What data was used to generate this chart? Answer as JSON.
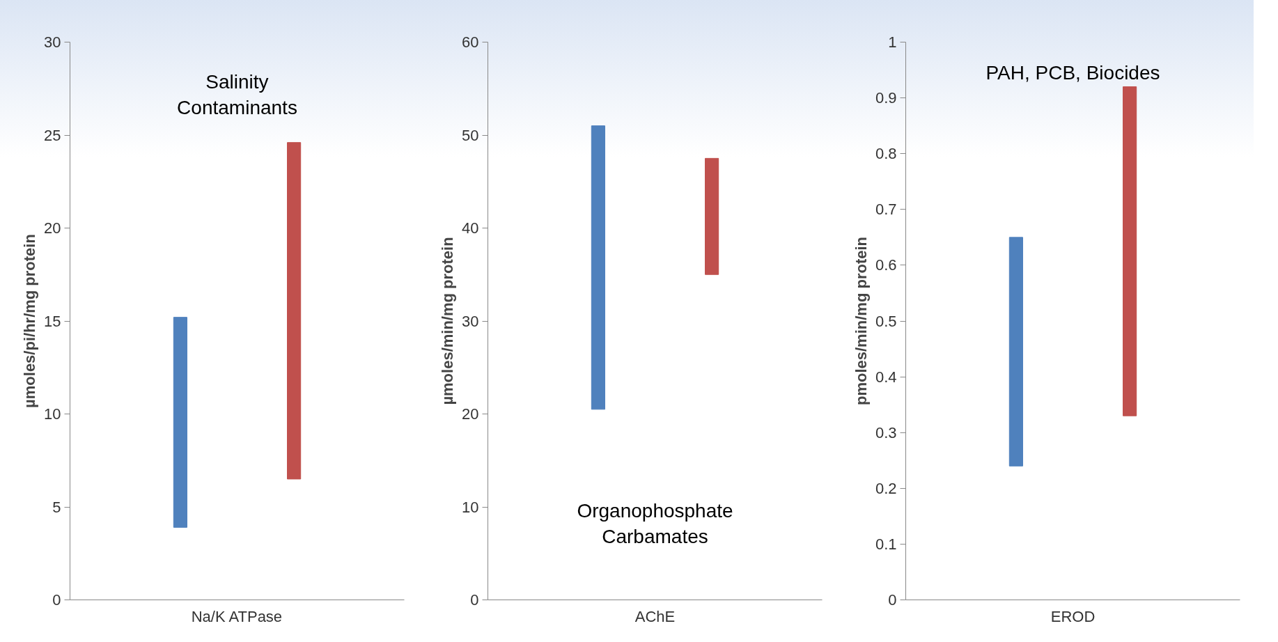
{
  "chart_data": [
    {
      "type": "bar",
      "categories": [
        "Na/K ATPase"
      ],
      "ylabel": "µmoles/pi/hr/mg protein",
      "ylim": [
        0,
        30
      ],
      "yticks": [
        0,
        5,
        10,
        15,
        20,
        25,
        30
      ],
      "annotations": [
        "Salinity\nContaminants"
      ],
      "series": [
        {
          "color": "#4f81bd",
          "base": [
            3.9
          ],
          "values": [
            11.3
          ]
        },
        {
          "color": "#c0504d",
          "base": [
            6.5
          ],
          "values": [
            18.1
          ]
        }
      ]
    },
    {
      "type": "bar",
      "categories": [
        "AChE"
      ],
      "ylabel": "µmoles/min/mg protein",
      "ylim": [
        0,
        60
      ],
      "yticks": [
        0,
        10,
        20,
        30,
        40,
        50,
        60
      ],
      "annotations": [
        "Organophosphate\nCarbamates"
      ],
      "series": [
        {
          "color": "#4f81bd",
          "base": [
            20.5
          ],
          "values": [
            30.5
          ]
        },
        {
          "color": "#c0504d",
          "base": [
            35
          ],
          "values": [
            12.5
          ]
        }
      ]
    },
    {
      "type": "bar",
      "categories": [
        "EROD"
      ],
      "ylabel": "pmoles/min/mg protein",
      "ylim": [
        0,
        1
      ],
      "yticks": [
        0,
        0.1,
        0.2,
        0.3,
        0.4,
        0.5,
        0.6,
        0.7,
        0.8,
        0.9,
        1
      ],
      "annotations": [
        "PAH, PCB, Biocides"
      ],
      "series": [
        {
          "color": "#4f81bd",
          "base": [
            0.24
          ],
          "values": [
            0.41
          ]
        },
        {
          "color": "#c0504d",
          "base": [
            0.33
          ],
          "values": [
            0.59
          ]
        }
      ]
    }
  ]
}
